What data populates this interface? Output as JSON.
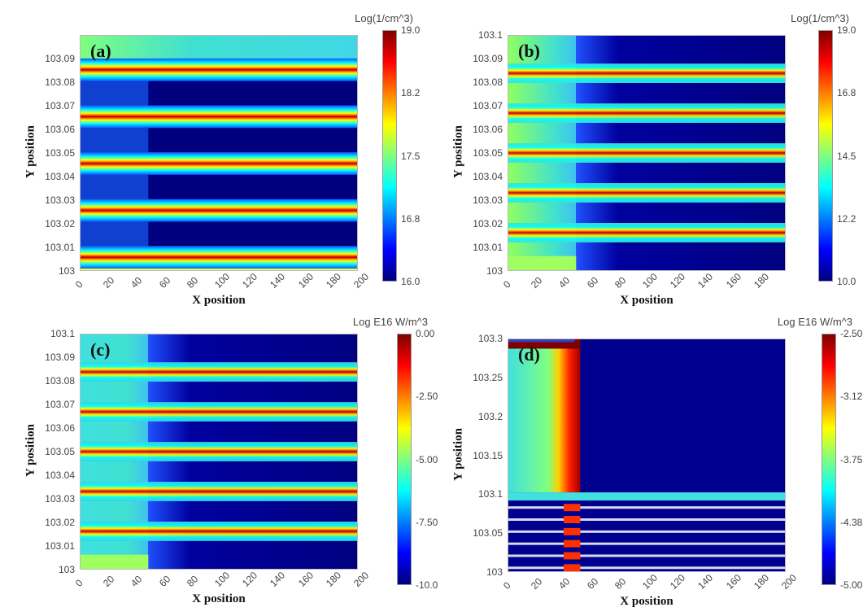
{
  "colors": {
    "low": "#00007f",
    "high": "#7f0000"
  },
  "chart_data": [
    {
      "type": "heatmap",
      "panel_label": "(a)",
      "xlabel": "X position",
      "ylabel": "Y position",
      "xlim": [
        0,
        200
      ],
      "ylim": [
        103,
        103.1
      ],
      "xticks": [
        "0",
        "20",
        "40",
        "60",
        "80",
        "100",
        "120",
        "140",
        "160",
        "180",
        "200"
      ],
      "yticks": [
        "103",
        "103.01",
        "103.02",
        "103.03",
        "103.04",
        "103.05",
        "103.06",
        "103.07",
        "103.08",
        "103.09"
      ],
      "colorbar_title": "Log(1/cm^3)",
      "colorbar_ticks": [
        "19.0",
        "18.2",
        "17.5",
        "16.8",
        "16.0"
      ],
      "colorbar_range": [
        16.0,
        19.0
      ]
    },
    {
      "type": "heatmap",
      "panel_label": "(b)",
      "xlabel": "X position",
      "ylabel": "Y position",
      "xlim": [
        0,
        200
      ],
      "ylim": [
        103,
        103.1
      ],
      "xticks": [
        "0",
        "20",
        "40",
        "60",
        "80",
        "100",
        "120",
        "140",
        "160",
        "180"
      ],
      "yticks": [
        "103",
        "103.01",
        "103.02",
        "103.03",
        "103.04",
        "103.05",
        "103.06",
        "103.07",
        "103.08",
        "103.09",
        "103.1"
      ],
      "colorbar_title": "Log(1/cm^3)",
      "colorbar_ticks": [
        "19.0",
        "16.8",
        "14.5",
        "12.2",
        "10.0"
      ],
      "colorbar_range": [
        10.0,
        19.0
      ]
    },
    {
      "type": "heatmap",
      "panel_label": "(c)",
      "xlabel": "X position",
      "ylabel": "Y position",
      "xlim": [
        0,
        200
      ],
      "ylim": [
        103,
        103.1
      ],
      "xticks": [
        "0",
        "20",
        "40",
        "60",
        "80",
        "100",
        "120",
        "140",
        "160",
        "180",
        "200"
      ],
      "yticks": [
        "103",
        "103.01",
        "103.02",
        "103.03",
        "103.04",
        "103.05",
        "103.06",
        "103.07",
        "103.08",
        "103.09",
        "103.1"
      ],
      "colorbar_title": "Log E16 W/m^3",
      "colorbar_ticks": [
        "0.00",
        "-2.50",
        "-5.00",
        "-7.50",
        "-10.0"
      ],
      "colorbar_range": [
        -10.0,
        0.0
      ]
    },
    {
      "type": "heatmap",
      "panel_label": "(d)",
      "xlabel": "X position",
      "ylabel": "Y position",
      "xlim": [
        0,
        200
      ],
      "ylim": [
        103,
        103.3
      ],
      "xticks": [
        "0",
        "20",
        "40",
        "60",
        "80",
        "100",
        "120",
        "140",
        "160",
        "180",
        "200"
      ],
      "yticks": [
        "103",
        "103.05",
        "103.1",
        "103.15",
        "103.2",
        "103.25",
        "103.3"
      ],
      "colorbar_title": "Log E16 W/m^3",
      "colorbar_ticks": [
        "-2.50",
        "-3.12",
        "-3.75",
        "-4.38",
        "-5.00"
      ],
      "colorbar_range": [
        -5.0,
        -2.5
      ]
    }
  ]
}
